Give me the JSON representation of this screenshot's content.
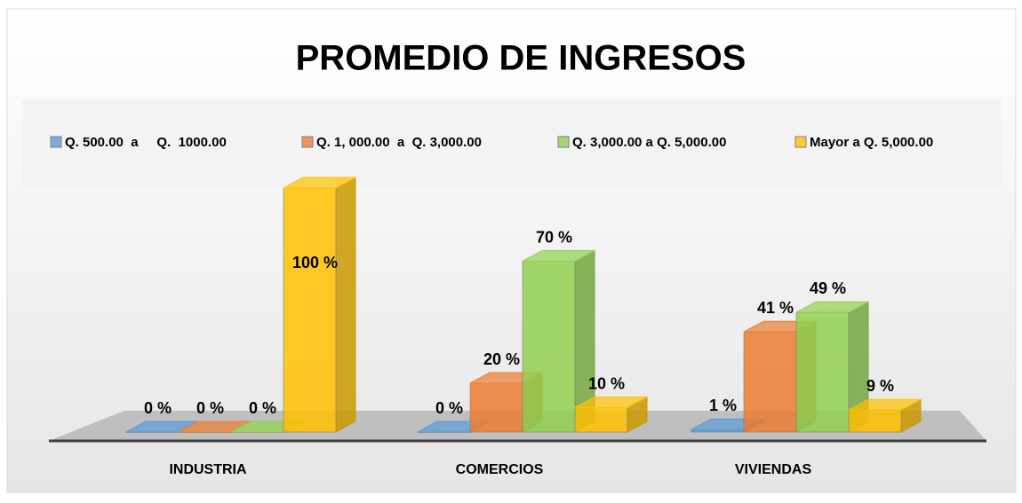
{
  "chart_data": {
    "type": "bar3d",
    "title": "PROMEDIO DE INGRESOS",
    "categories": [
      "INDUSTRIA",
      "COMERCIOS",
      "VIVIENDAS"
    ],
    "series": [
      {
        "name": "Q. 500.00  a     Q.  1000.00",
        "color": "#5b9bd5",
        "values": [
          0,
          0,
          1
        ],
        "value_labels": [
          "0 %",
          "0 %",
          "1 %"
        ]
      },
      {
        "name": "Q. 1, 000.00  a  Q. 3,000.00",
        "color": "#ed7d31",
        "values": [
          0,
          20,
          41
        ],
        "value_labels": [
          "0 %",
          "20 %",
          "41 %"
        ]
      },
      {
        "name": "Q. 3,000.00 a Q. 5,000.00",
        "color": "#92d050",
        "values": [
          0,
          70,
          49
        ],
        "value_labels": [
          "0 %",
          "70 %",
          "49 %"
        ]
      },
      {
        "name": "Mayor a Q. 5,000.00",
        "color": "#ffc000",
        "values": [
          100,
          10,
          9
        ],
        "value_labels": [
          "100 %",
          "10 %",
          "9 %"
        ]
      }
    ],
    "legend": "top"
  }
}
